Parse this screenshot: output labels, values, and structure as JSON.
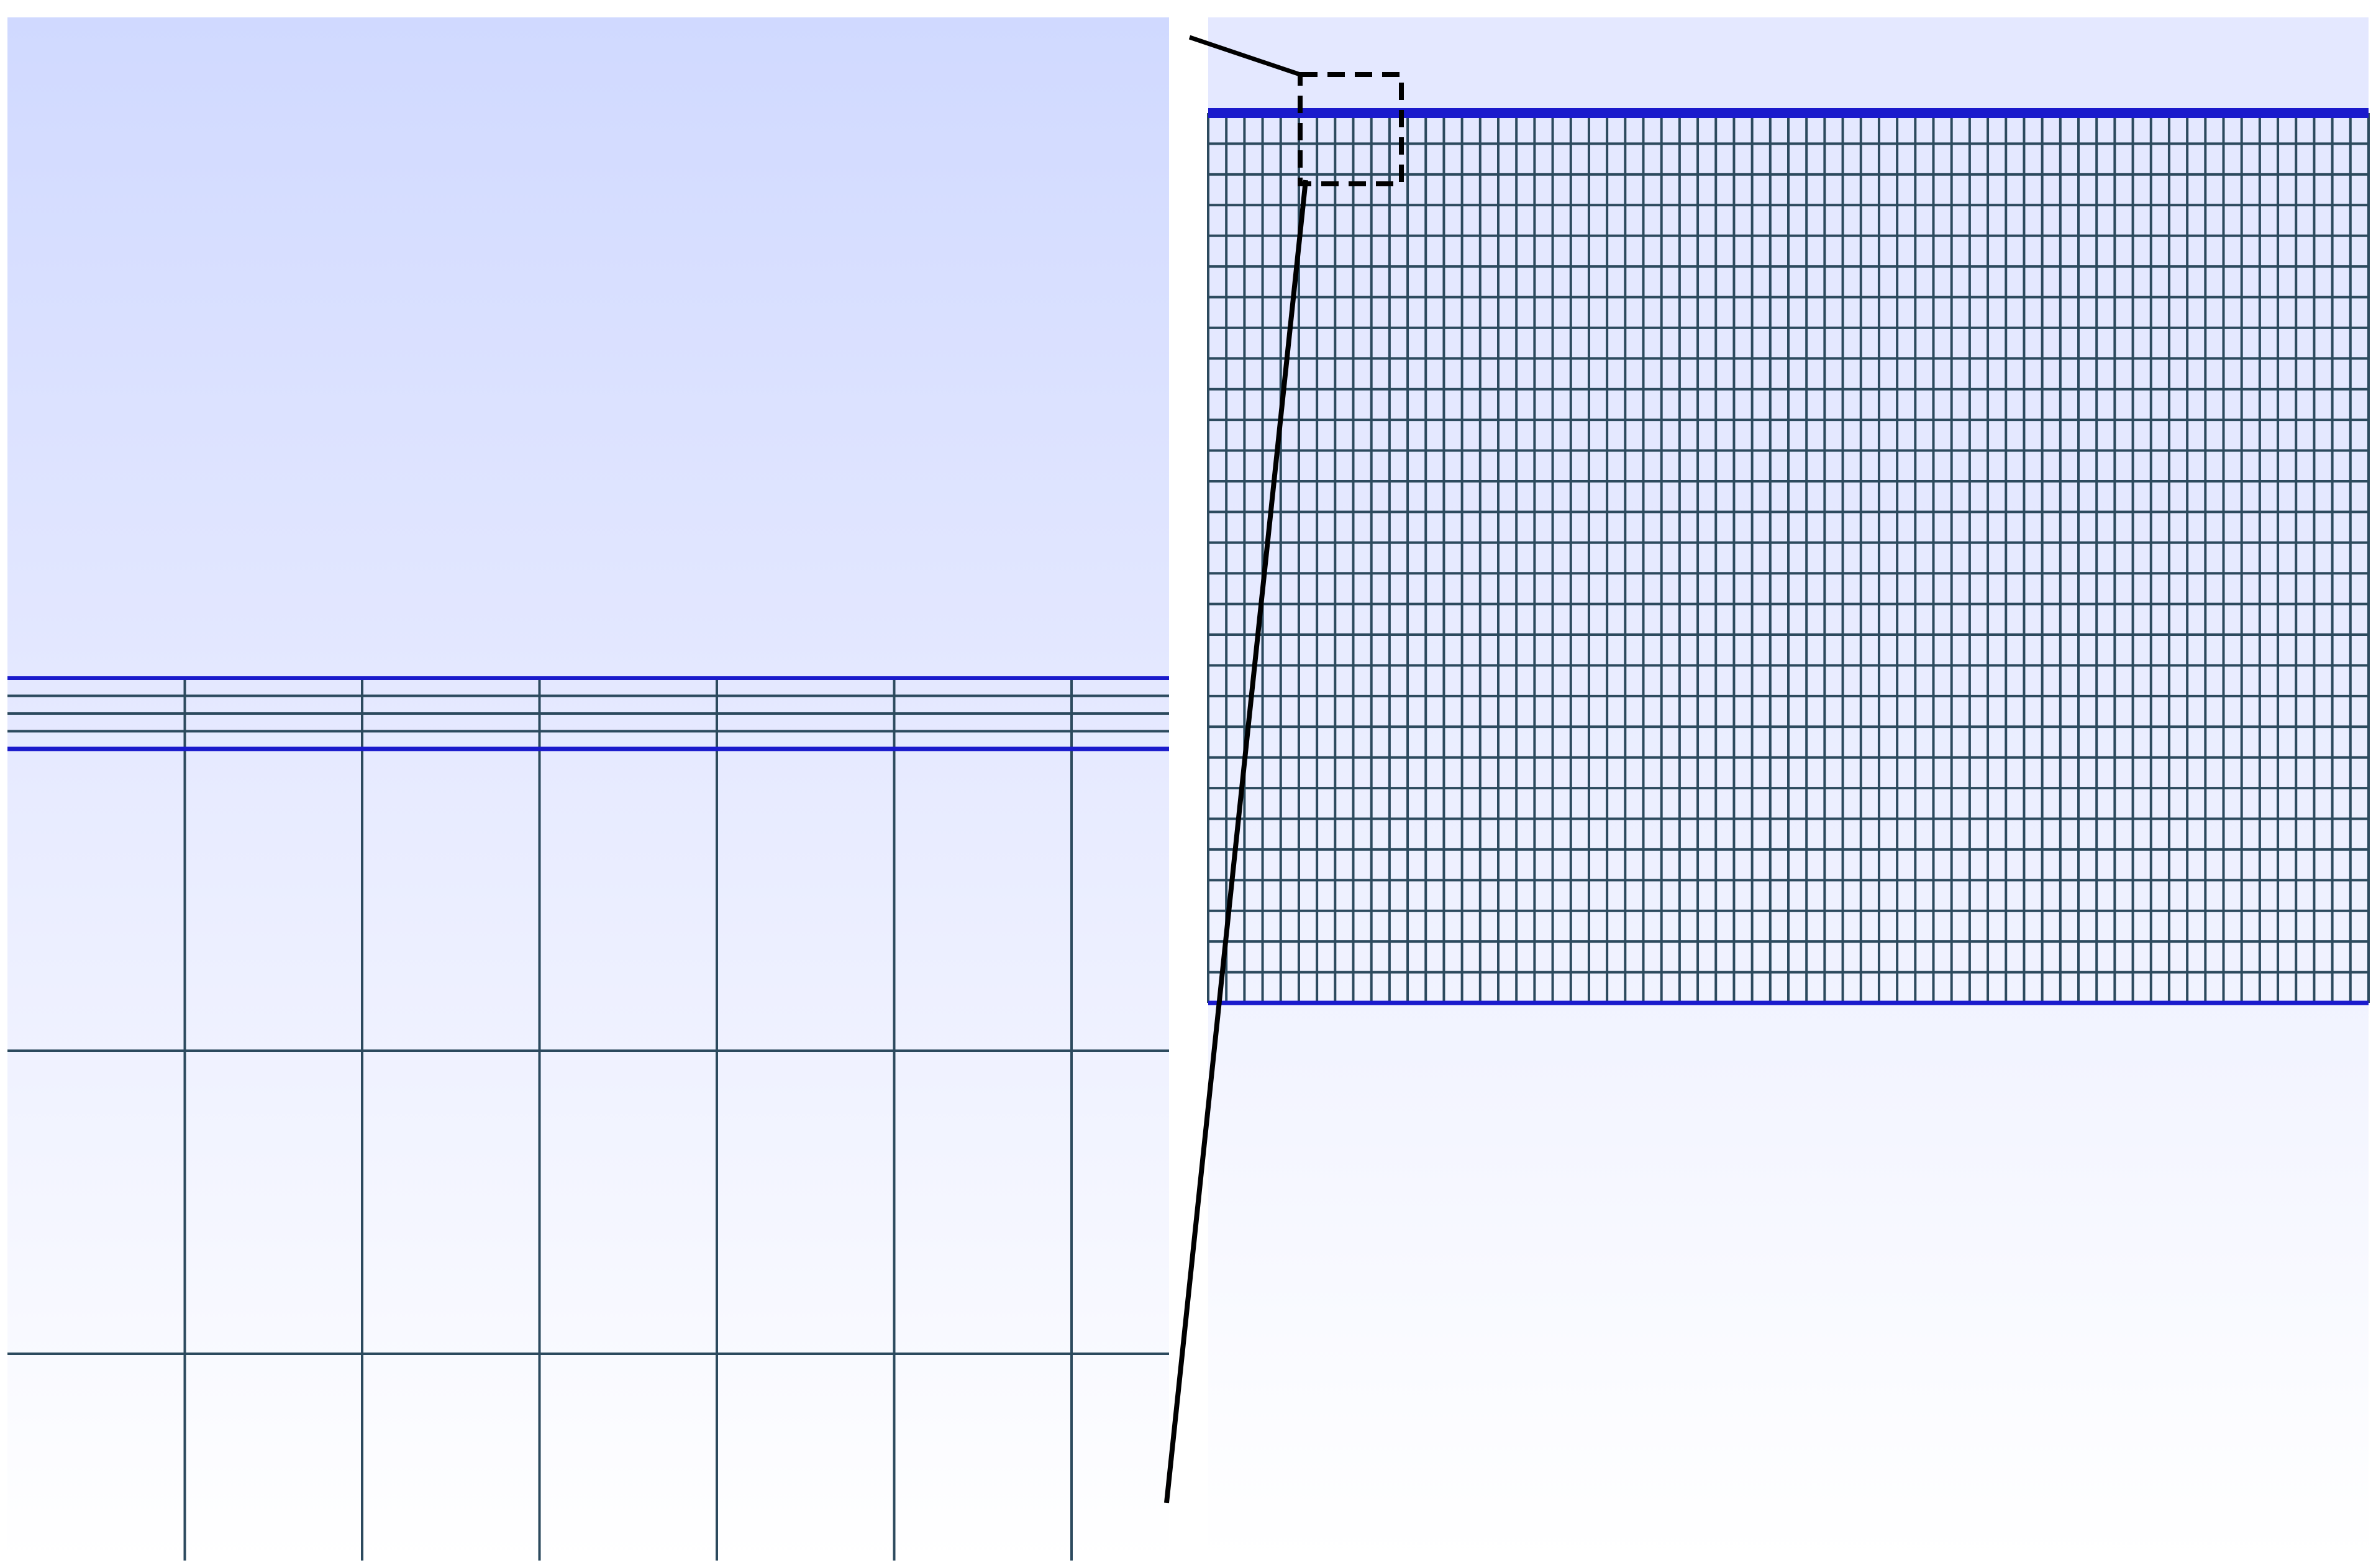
{
  "figure": {
    "colors": {
      "page_background": "#ffffff",
      "panel_gradient_top": "#d0d9ff",
      "panel_gradient_mid": "#e4e8ff",
      "panel_gradient_bottom": "#ffffff",
      "mesh_line": "#2c4a5e",
      "interface_line": "#1a1acc",
      "zoom_connector": "#000000"
    },
    "left_panel": {
      "description_role": "zoomed-detail",
      "band_horizontal_lines": 3,
      "vertical_lines": 6,
      "lower_horizontal_lines": 2
    },
    "right_panel": {
      "description_role": "full-mesh",
      "columns": 64,
      "rows": 29
    }
  }
}
